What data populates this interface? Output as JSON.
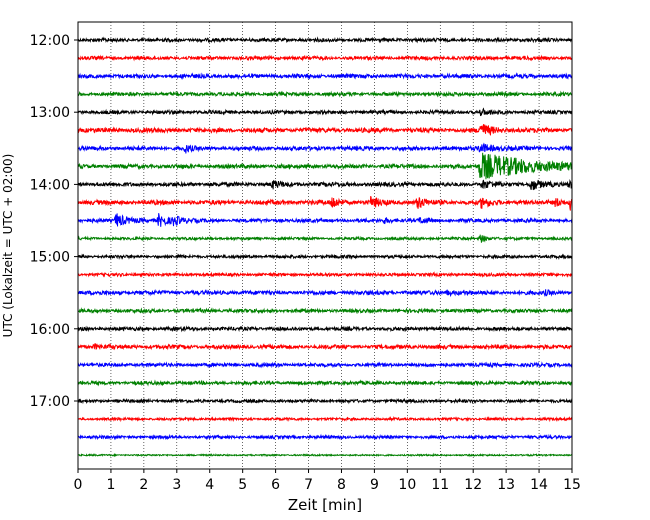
{
  "chart_data": {
    "type": "line",
    "title": "",
    "xlabel": "Zeit  [min]",
    "ylabel": "UTC (Lokalzeit = UTC + 02:00)",
    "xlim": [
      0,
      15
    ],
    "xticks": [
      "0",
      "1",
      "2",
      "3",
      "4",
      "5",
      "6",
      "7",
      "8",
      "9",
      "10",
      "11",
      "12",
      "13",
      "14",
      "15"
    ],
    "grid": "vertical dotted",
    "trace_interval_minutes": 15,
    "yticks": [
      {
        "label": "12:00",
        "trace": 0
      },
      {
        "label": "13:00",
        "trace": 4
      },
      {
        "label": "14:00",
        "trace": 8
      },
      {
        "label": "15:00",
        "trace": 12
      },
      {
        "label": "16:00",
        "trace": 16
      },
      {
        "label": "17:00",
        "trace": 20
      }
    ],
    "series": [
      {
        "start": "12:00",
        "color": "#000000",
        "noise": 0.35,
        "events": []
      },
      {
        "start": "12:15",
        "color": "#ff0000",
        "noise": 0.35,
        "events": []
      },
      {
        "start": "12:30",
        "color": "#0000ff",
        "noise": 0.4,
        "events": []
      },
      {
        "start": "12:45",
        "color": "#008000",
        "noise": 0.35,
        "events": []
      },
      {
        "start": "13:00",
        "color": "#000000",
        "noise": 0.35,
        "events": [
          {
            "t": 12.2,
            "amp": 0.6,
            "dur": 0.3
          }
        ]
      },
      {
        "start": "13:15",
        "color": "#ff0000",
        "noise": 0.45,
        "events": [
          {
            "t": 12.2,
            "amp": 1.6,
            "dur": 0.3
          }
        ]
      },
      {
        "start": "13:30",
        "color": "#0000ff",
        "noise": 0.4,
        "events": [
          {
            "t": 3.25,
            "amp": 0.9,
            "dur": 0.15
          },
          {
            "t": 12.2,
            "amp": 1.0,
            "dur": 0.4
          }
        ]
      },
      {
        "start": "13:45",
        "color": "#008000",
        "noise": 0.4,
        "events": [
          {
            "t": 12.2,
            "amp": 3.2,
            "dur": 1.5
          }
        ]
      },
      {
        "start": "14:00",
        "color": "#000000",
        "noise": 0.4,
        "events": [
          {
            "t": 5.9,
            "amp": 0.9,
            "dur": 0.2
          },
          {
            "t": 12.25,
            "amp": 0.9,
            "dur": 0.3
          },
          {
            "t": 13.75,
            "amp": 1.5,
            "dur": 0.25
          },
          {
            "t": 14.9,
            "amp": 0.9,
            "dur": 0.2
          }
        ]
      },
      {
        "start": "14:15",
        "color": "#ff0000",
        "noise": 0.45,
        "events": [
          {
            "t": 7.7,
            "amp": 1.4,
            "dur": 0.2
          },
          {
            "t": 8.9,
            "amp": 1.3,
            "dur": 0.2
          },
          {
            "t": 10.3,
            "amp": 1.4,
            "dur": 0.2
          },
          {
            "t": 12.25,
            "amp": 1.2,
            "dur": 0.2
          },
          {
            "t": 14.5,
            "amp": 0.9,
            "dur": 0.2
          },
          {
            "t": 14.95,
            "amp": 1.9,
            "dur": 0.2
          }
        ]
      },
      {
        "start": "14:30",
        "color": "#0000ff",
        "noise": 0.35,
        "events": [
          {
            "t": 1.15,
            "amp": 1.7,
            "dur": 0.3
          },
          {
            "t": 2.45,
            "amp": 1.4,
            "dur": 0.3
          },
          {
            "t": 2.9,
            "amp": 1.0,
            "dur": 0.25
          },
          {
            "t": 9.3,
            "amp": 0.6,
            "dur": 0.2
          },
          {
            "t": 10.4,
            "amp": 0.6,
            "dur": 0.2
          }
        ]
      },
      {
        "start": "14:45",
        "color": "#008000",
        "noise": 0.25,
        "events": [
          {
            "t": 12.2,
            "amp": 1.0,
            "dur": 0.2
          }
        ]
      },
      {
        "start": "15:00",
        "color": "#000000",
        "noise": 0.3,
        "events": []
      },
      {
        "start": "15:15",
        "color": "#ff0000",
        "noise": 0.3,
        "events": []
      },
      {
        "start": "15:30",
        "color": "#0000ff",
        "noise": 0.4,
        "events": [
          {
            "t": 11.2,
            "amp": 0.5,
            "dur": 0.3
          },
          {
            "t": 14.2,
            "amp": 0.4,
            "dur": 0.2
          }
        ]
      },
      {
        "start": "15:45",
        "color": "#008000",
        "noise": 0.35,
        "events": []
      },
      {
        "start": "16:00",
        "color": "#000000",
        "noise": 0.35,
        "events": []
      },
      {
        "start": "16:15",
        "color": "#ff0000",
        "noise": 0.4,
        "events": [
          {
            "t": 0.5,
            "amp": 0.5,
            "dur": 0.2
          }
        ]
      },
      {
        "start": "16:30",
        "color": "#0000ff",
        "noise": 0.35,
        "events": []
      },
      {
        "start": "16:45",
        "color": "#008000",
        "noise": 0.35,
        "events": []
      },
      {
        "start": "17:00",
        "color": "#000000",
        "noise": 0.3,
        "events": []
      },
      {
        "start": "17:15",
        "color": "#ff0000",
        "noise": 0.25,
        "events": []
      },
      {
        "start": "17:30",
        "color": "#0000ff",
        "noise": 0.3,
        "events": []
      },
      {
        "start": "17:45",
        "color": "#008000",
        "noise": 0.15,
        "events": []
      }
    ]
  }
}
